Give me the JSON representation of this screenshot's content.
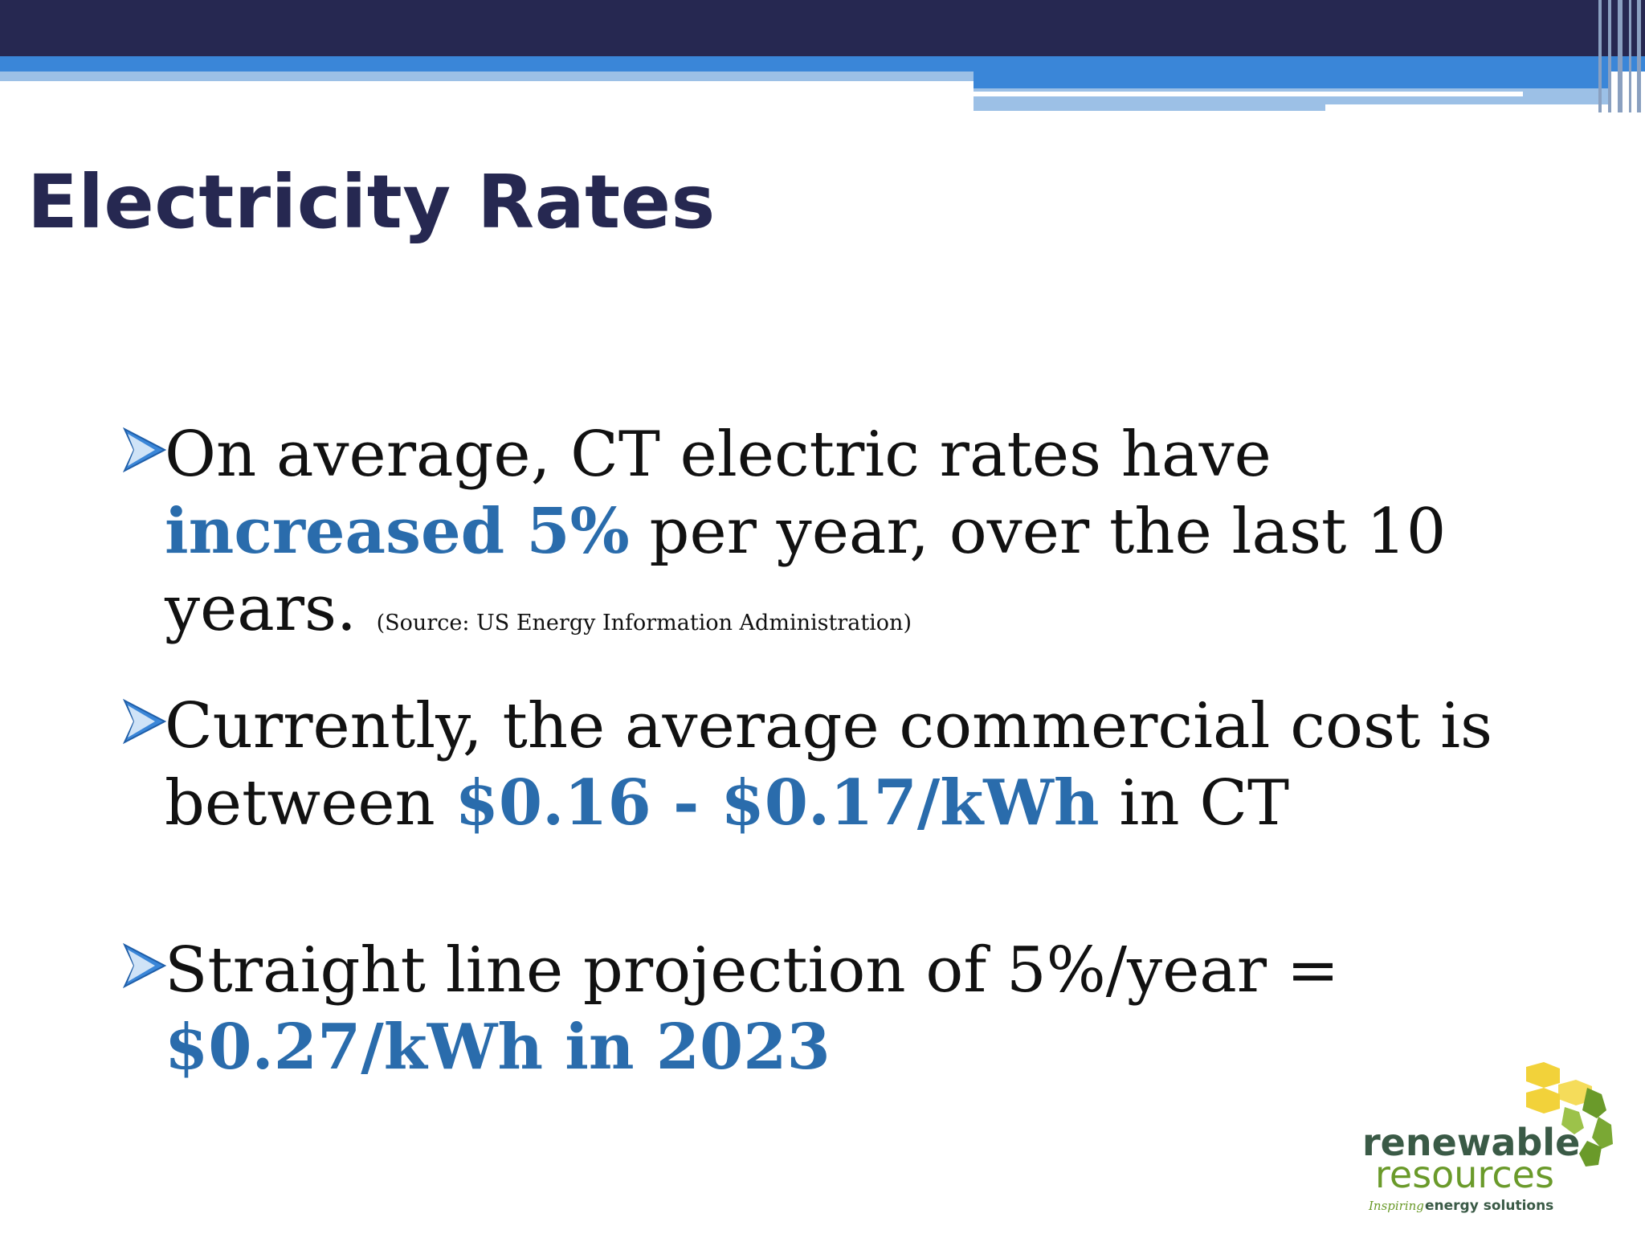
{
  "slide": {
    "title": "Electricity Rates",
    "bullets": [
      {
        "pre": "On average, CT electric rates have ",
        "highlight": "increased 5%",
        "post": " per year, over the last 10 years.",
        "source": "(Source: US Energy Information Administration)"
      },
      {
        "pre": "Currently, the average commercial cost is between ",
        "highlight": "$0.16 - $0.17/kWh",
        "post": " in CT"
      },
      {
        "pre": "Straight line projection of 5%/year = ",
        "highlight": "$0.27/kWh in 2023",
        "post": ""
      }
    ]
  },
  "logo": {
    "line1": "renewable",
    "line2": "resources",
    "tagline_script": "Inspiring",
    "tagline": "energy solutions"
  },
  "colors": {
    "navy": "#262851",
    "accent_blue": "#3a86d8",
    "highlight_blue": "#2a6cac",
    "logo_green": "#6a9a2a",
    "logo_yellow": "#f2d23a"
  }
}
